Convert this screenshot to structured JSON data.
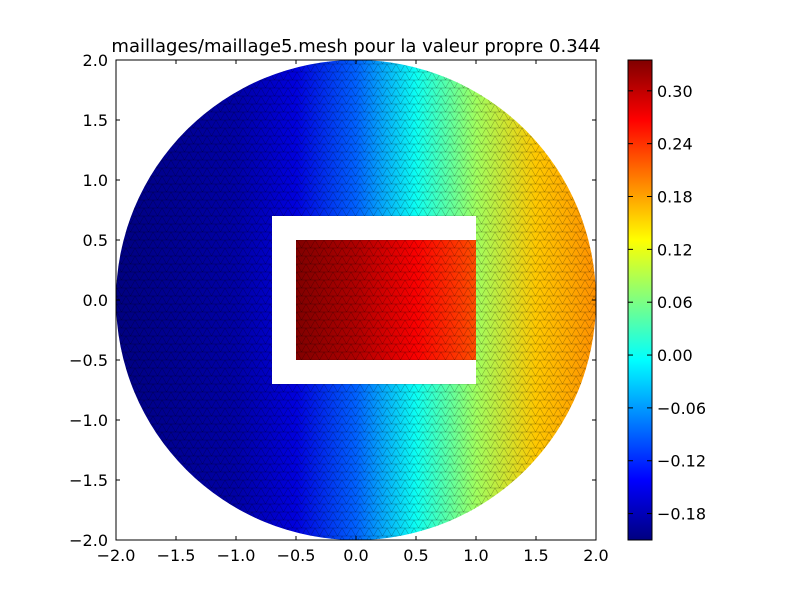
{
  "chart_data": {
    "type": "heatmap",
    "title": "maillages/maillage5.mesh pour la valeur propre 0.344",
    "xlabel": "",
    "ylabel": "",
    "xlim": [
      -2.0,
      2.0
    ],
    "ylim": [
      -2.0,
      2.0
    ],
    "x_ticks": [
      "−2.0",
      "−1.5",
      "−1.0",
      "−0.5",
      "0.0",
      "0.5",
      "1.0",
      "1.5",
      "2.0"
    ],
    "y_ticks": [
      "−2.0",
      "−1.5",
      "−1.0",
      "−0.5",
      "0.0",
      "0.5",
      "1.0",
      "1.5",
      "2.0"
    ],
    "x_tick_values": [
      -2.0,
      -1.5,
      -1.0,
      -0.5,
      0.0,
      0.5,
      1.0,
      1.5,
      2.0
    ],
    "y_tick_values": [
      -2.0,
      -1.5,
      -1.0,
      -0.5,
      0.0,
      0.5,
      1.0,
      1.5,
      2.0
    ],
    "domain": {
      "disk_center": [
        0.0,
        0.0
      ],
      "disk_radius": 2.0,
      "hole_outer": {
        "x": [
          -0.7,
          1.0
        ],
        "y": [
          -0.7,
          0.7
        ]
      },
      "inner_block": {
        "x": [
          -0.5,
          1.0
        ],
        "y": [
          -0.5,
          0.5
        ]
      }
    },
    "colormap": "jet",
    "colorbar": {
      "range": [
        -0.21,
        0.335
      ],
      "ticks": [
        -0.18,
        -0.12,
        -0.06,
        0.0,
        0.06,
        0.12,
        0.18,
        0.24,
        0.3
      ],
      "tick_labels": [
        "−0.18",
        "−0.12",
        "−0.06",
        "0.00",
        "0.06",
        "0.12",
        "0.18",
        "0.24",
        "0.30"
      ]
    },
    "field_samples": {
      "outer_x": [
        -2.0,
        -1.0,
        -0.5,
        0.0,
        0.5,
        1.0,
        1.5,
        2.0
      ],
      "outer_values": [
        -0.21,
        -0.19,
        -0.16,
        -0.09,
        0.0,
        0.08,
        0.16,
        0.19
      ],
      "inner_x": [
        -0.5,
        0.0,
        0.5,
        1.0
      ],
      "inner_values": [
        0.335,
        0.31,
        0.27,
        0.225
      ]
    },
    "grid": false,
    "legend": "colorbar-right"
  }
}
